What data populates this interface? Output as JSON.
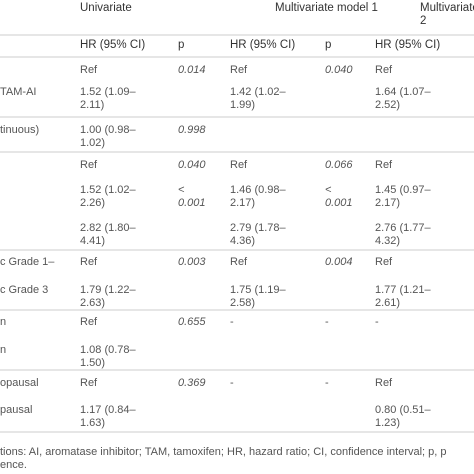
{
  "header": {
    "groups": [
      [
        "Univariate"
      ],
      [
        "Multivariate model 1"
      ],
      [
        "Multivariate model",
        "2"
      ]
    ],
    "columns": [
      [
        "HR (95% CI)"
      ],
      [
        "p"
      ],
      [
        "HR (95% CI)"
      ],
      [
        "p"
      ],
      [
        "HR (95% CI)"
      ]
    ]
  },
  "table": {
    "rows": [
      {
        "uni_hr": [
          "Ref"
        ],
        "uni_p": [
          "0.014"
        ],
        "m1_hr": [
          "Ref"
        ],
        "m1_p": [
          "0.040"
        ],
        "m2_hr": [
          "Ref"
        ]
      },
      {
        "label": [
          "TAM-AI"
        ],
        "uni_hr": [
          "1.52 (1.09–",
          "2.11)"
        ],
        "m1_hr": [
          "1.42 (1.02–",
          "1.99)"
        ],
        "m2_hr": [
          "1.64 (1.07–",
          "2.52)"
        ]
      },
      {
        "label": [
          "tinuous)"
        ],
        "uni_hr": [
          "1.00 (0.98–",
          "1.02)"
        ],
        "uni_p": [
          "0.998"
        ]
      },
      {
        "uni_hr": [
          "Ref"
        ],
        "uni_p": [
          "0.040"
        ],
        "m1_hr": [
          "Ref"
        ],
        "m1_p": [
          "0.066"
        ],
        "m2_hr": [
          "Ref"
        ]
      },
      {
        "uni_hr": [
          "1.52 (1.02–",
          "2.26)"
        ],
        "uni_p": [
          "<",
          "0.001"
        ],
        "m1_hr": [
          "1.46 (0.98–",
          "2.17)"
        ],
        "m1_p": [
          "<",
          "0.001"
        ],
        "m2_hr": [
          "1.45 (0.97–",
          "2.17)"
        ]
      },
      {
        "uni_hr": [
          "2.82 (1.80–",
          "4.41)"
        ],
        "m1_hr": [
          "2.79 (1.78–",
          "4.36)"
        ],
        "m2_hr": [
          "2.76 (1.77–",
          "4.32)"
        ]
      },
      {
        "label": [
          "c Grade 1–"
        ],
        "uni_hr": [
          "Ref"
        ],
        "uni_p": [
          "0.003"
        ],
        "m1_hr": [
          "Ref"
        ],
        "m1_p": [
          "0.004"
        ],
        "m2_hr": [
          "Ref"
        ]
      },
      {
        "label": [
          "c Grade 3"
        ],
        "uni_hr": [
          "1.79 (1.22–",
          "2.63)"
        ],
        "m1_hr": [
          "1.75 (1.19–",
          "2.58)"
        ],
        "m2_hr": [
          "1.77 (1.21–",
          "2.61)"
        ]
      },
      {
        "label": [
          "n"
        ],
        "uni_hr": [
          "Ref"
        ],
        "uni_p": [
          "0.655"
        ],
        "m1_hr": [
          "-"
        ],
        "m1_p": [
          "-"
        ],
        "m2_hr": [
          "-"
        ]
      },
      {
        "label": [
          "n"
        ],
        "uni_hr": [
          "1.08 (0.78–",
          "1.50)"
        ]
      },
      {
        "label": [
          "opausal"
        ],
        "uni_hr": [
          "Ref"
        ],
        "uni_p": [
          "0.369"
        ],
        "m1_hr": [
          "-"
        ],
        "m1_p": [
          "-"
        ],
        "m2_hr": [
          "Ref"
        ]
      },
      {
        "label": [
          "pausal"
        ],
        "uni_hr": [
          "1.17 (0.84–",
          "1.63)"
        ],
        "m2_hr": [
          "0.80 (0.51–",
          "1.23)"
        ]
      }
    ]
  },
  "footer": [
    "tions: AI, aromatase inhibitor; TAM, tamoxifen; HR, hazard ratio; CI, confidence interval; p, p",
    "ence."
  ]
}
